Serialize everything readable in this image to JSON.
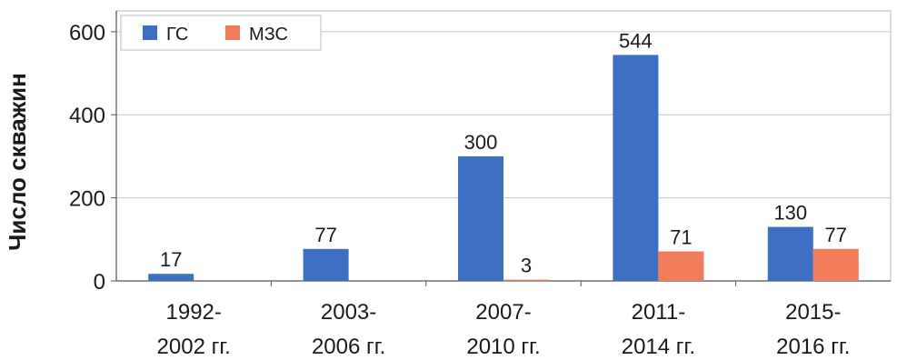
{
  "chart_data": {
    "type": "bar",
    "title": "",
    "xlabel": "",
    "ylabel": "Число скважин",
    "ylim": [
      0,
      650
    ],
    "yticks": [
      0,
      200,
      400,
      600
    ],
    "grid": true,
    "legend_position": "top-left",
    "categories": [
      [
        "1992-",
        "2002 гг."
      ],
      [
        "2003-",
        "2006 гг."
      ],
      [
        "2007-",
        "2010 гг."
      ],
      [
        "2011-",
        "2014 гг."
      ],
      [
        "2015-",
        "2016 гг."
      ]
    ],
    "series": [
      {
        "name": "ГС",
        "color": "#3f6fc2",
        "values": [
          17,
          77,
          300,
          544,
          130
        ]
      },
      {
        "name": "МЗС",
        "color": "#f07c5a",
        "values": [
          0,
          0,
          3,
          71,
          77
        ]
      }
    ],
    "data_labels": [
      [
        "17",
        "77",
        "300",
        "544",
        "130"
      ],
      [
        "",
        "",
        "3",
        "71",
        "77"
      ]
    ]
  }
}
